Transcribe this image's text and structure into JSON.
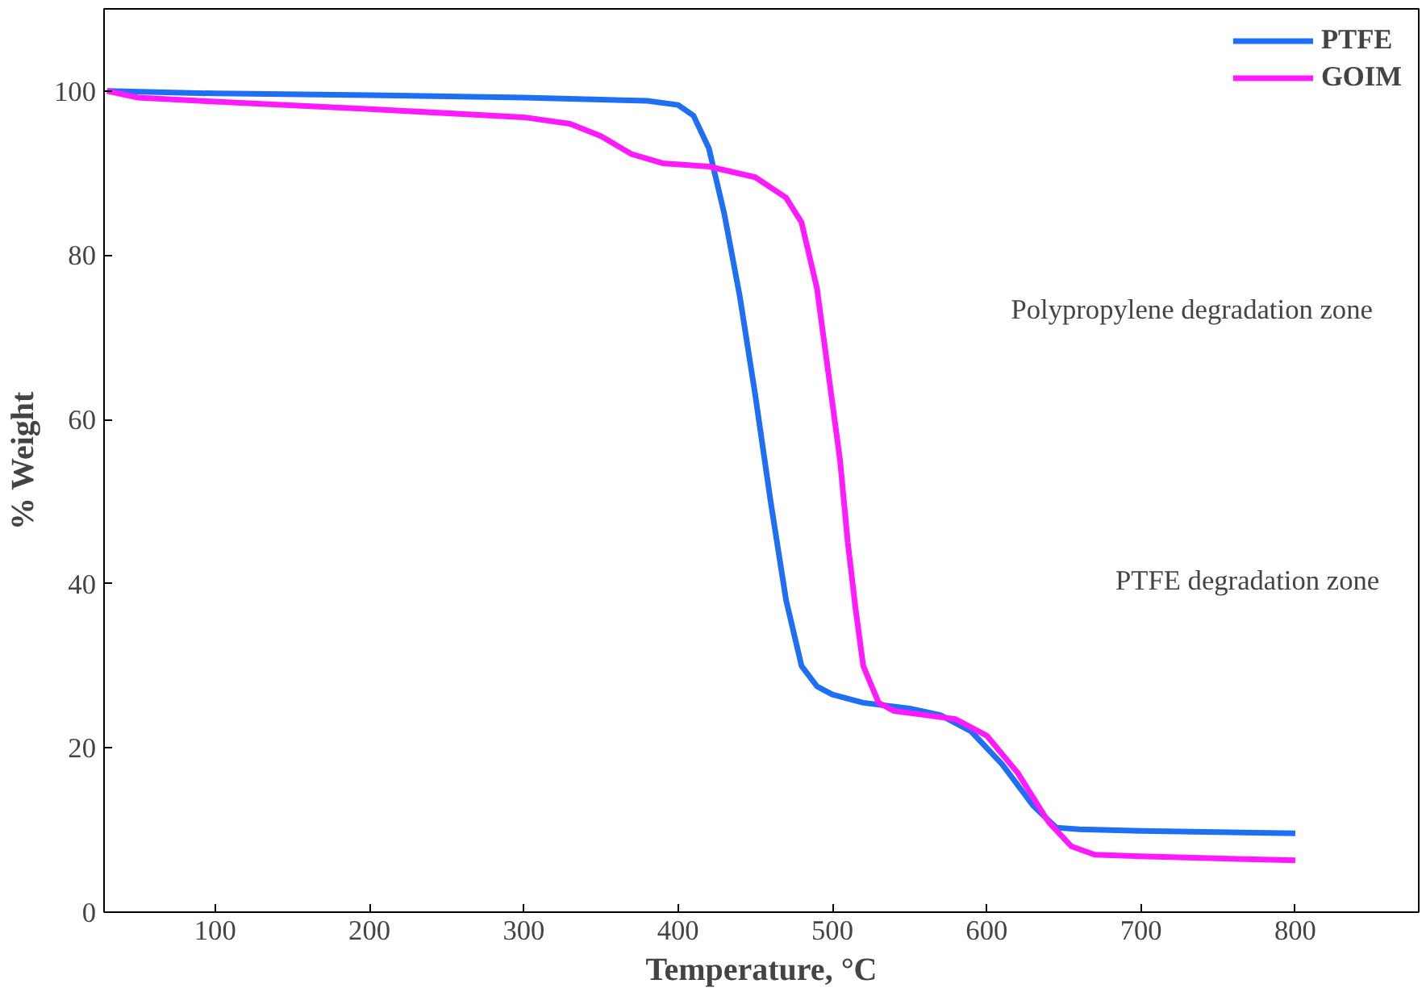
{
  "chart_data": {
    "type": "line",
    "xlabel": "Temperature, °C",
    "ylabel": "% Weight",
    "xlim": [
      28,
      880
    ],
    "ylim": [
      0,
      110
    ],
    "xticks": [
      100,
      200,
      300,
      400,
      500,
      600,
      700,
      800
    ],
    "yticks": [
      0,
      20,
      40,
      60,
      80,
      100
    ],
    "grid": false,
    "legend": "top right",
    "line_style": "solid",
    "marker": "none",
    "annotations": [
      "Polypropylene degradation zone",
      "PTFE degradation zone"
    ],
    "series": [
      {
        "name": "PTFE",
        "color": "#1f6ff5",
        "x": [
          30,
          100,
          200,
          300,
          380,
          400,
          410,
          420,
          430,
          440,
          450,
          460,
          470,
          480,
          490,
          500,
          520,
          550,
          570,
          590,
          610,
          630,
          645,
          660,
          700,
          800
        ],
        "values": [
          100,
          99.7,
          99.5,
          99.2,
          98.8,
          98.3,
          97,
          93,
          85,
          75,
          63,
          50,
          38,
          30,
          27.5,
          26.5,
          25.5,
          24.8,
          24,
          22,
          18,
          13,
          10.3,
          10.1,
          9.9,
          9.6
        ]
      },
      {
        "name": "GOIM",
        "color": "#ff1aff",
        "x": [
          30,
          50,
          100,
          200,
          300,
          330,
          350,
          370,
          390,
          420,
          450,
          470,
          480,
          490,
          500,
          505,
          510,
          515,
          520,
          530,
          540,
          560,
          580,
          600,
          620,
          640,
          655,
          670,
          700,
          800
        ],
        "values": [
          100,
          99.2,
          98.7,
          97.8,
          96.8,
          96,
          94.5,
          92.3,
          91.2,
          90.8,
          89.5,
          87,
          84,
          76,
          62,
          55,
          45,
          37,
          30,
          25.5,
          24.5,
          24,
          23.5,
          21.5,
          17,
          11,
          8,
          7,
          6.8,
          6.3
        ]
      }
    ]
  }
}
